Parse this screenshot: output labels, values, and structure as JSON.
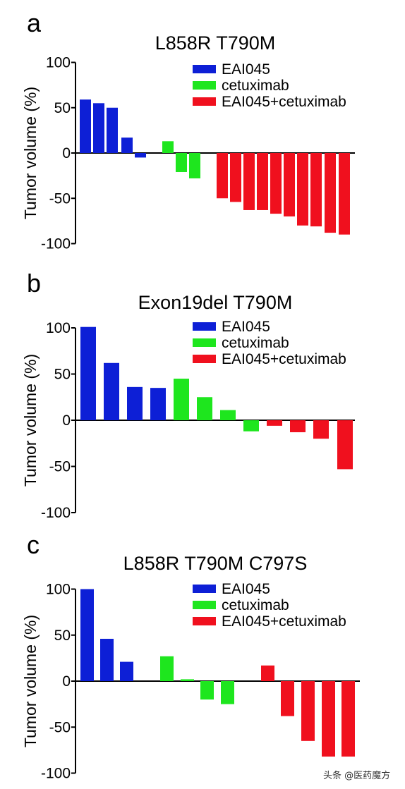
{
  "colors": {
    "EAI045": "#0d1fd6",
    "cetuximab": "#1ee61e",
    "EAI045+cetuximab": "#f0101e"
  },
  "watermark": "头条 @医药魔方",
  "chart_data": [
    {
      "type": "bar",
      "panel": "a",
      "title": "L858R T790M",
      "ylabel": "Tumor volume (%)",
      "ylim": [
        -100,
        100
      ],
      "yticks": [
        "100",
        "50",
        "0",
        "-50",
        "-100"
      ],
      "legend": [
        "EAI045",
        "cetuximab",
        "EAI045+cetuximab"
      ],
      "series": [
        {
          "name": "EAI045",
          "values": [
            59,
            55,
            50,
            17,
            -5
          ]
        },
        {
          "name": "cetuximab",
          "values": [
            13,
            -21,
            -28
          ]
        },
        {
          "name": "EAI045+cetuximab",
          "values": [
            -50,
            -54,
            -63,
            -63,
            -67,
            -70,
            -80,
            -81,
            -88,
            -90
          ]
        }
      ]
    },
    {
      "type": "bar",
      "panel": "b",
      "title": "Exon19del T790M",
      "ylabel": "Tumor volume (%)",
      "ylim": [
        -100,
        100
      ],
      "yticks": [
        "100",
        "50",
        "0",
        "-50",
        "-100"
      ],
      "legend": [
        "EAI045",
        "cetuximab",
        "EAI045+cetuximab"
      ],
      "series": [
        {
          "name": "EAI045",
          "values": [
            101,
            62,
            36,
            35
          ]
        },
        {
          "name": "cetuximab",
          "values": [
            45,
            25,
            11,
            -12
          ]
        },
        {
          "name": "EAI045+cetuximab",
          "values": [
            -6,
            -13,
            -20,
            -53
          ]
        }
      ]
    },
    {
      "type": "bar",
      "panel": "c",
      "title": "L858R T790M C797S",
      "ylabel": "Tumor volume (%)",
      "ylim": [
        -100,
        100
      ],
      "yticks": [
        "100",
        "50",
        "0",
        "-50",
        "-100"
      ],
      "legend": [
        "EAI045",
        "cetuximab",
        "EAI045+cetuximab"
      ],
      "series": [
        {
          "name": "EAI045",
          "values": [
            100,
            46,
            21
          ]
        },
        {
          "name": "cetuximab",
          "values": [
            27,
            2,
            -20,
            -25
          ]
        },
        {
          "name": "EAI045+cetuximab",
          "values": [
            17,
            -38,
            -65,
            -82,
            -82
          ]
        }
      ]
    }
  ]
}
